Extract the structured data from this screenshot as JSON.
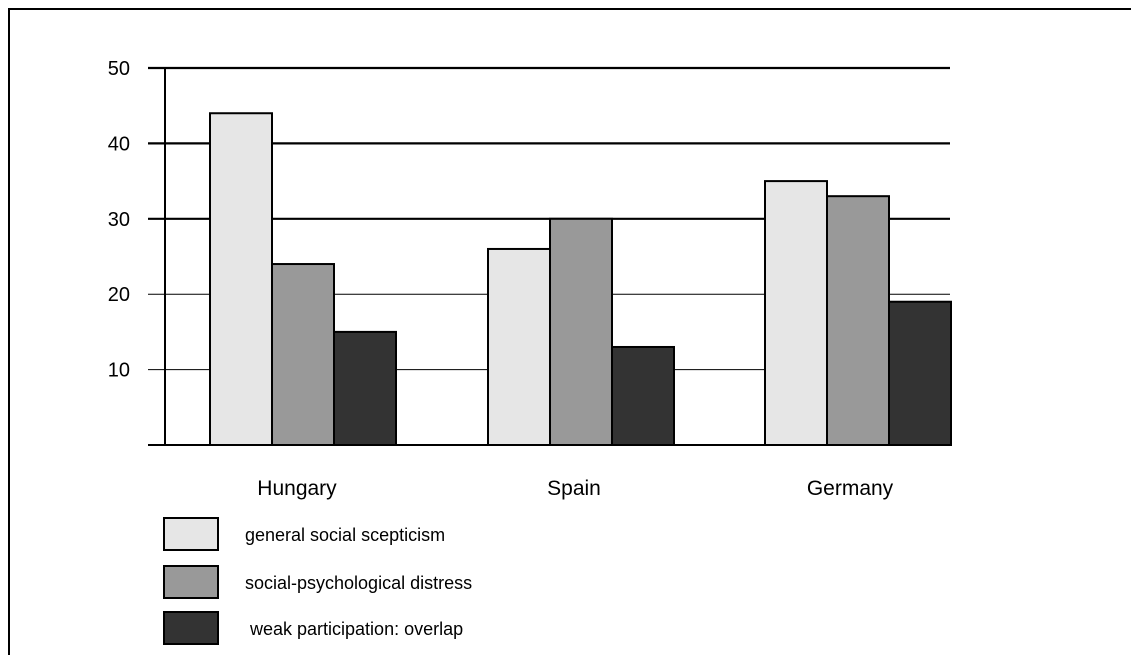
{
  "chart_data": {
    "type": "bar",
    "title": "",
    "xlabel": "",
    "ylabel": "",
    "ylim": [
      0,
      50
    ],
    "y_ticks": [
      10,
      20,
      30,
      40,
      50
    ],
    "grid": true,
    "legend_position": "bottom-left",
    "categories": [
      "Hungary",
      "Spain",
      "Germany"
    ],
    "series": [
      {
        "name": "general social scepticism",
        "color": "#e6e6e6",
        "values": [
          44,
          26,
          35
        ]
      },
      {
        "name": "social-psychological distress",
        "color": "#999999",
        "values": [
          24,
          30,
          33
        ]
      },
      {
        "name": "weak participation: overlap",
        "color": "#333333",
        "values": [
          15,
          13,
          19
        ]
      }
    ]
  }
}
